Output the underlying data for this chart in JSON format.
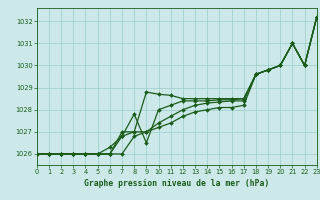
{
  "title": "Graphe pression niveau de la mer (hPa)",
  "bg_color": "#cce8e8",
  "grid_color": "#99cccc",
  "line_color": "#1a5c1a",
  "xlim": [
    0,
    23
  ],
  "ylim": [
    1025.5,
    1032.6
  ],
  "yticks": [
    1026,
    1027,
    1028,
    1029,
    1030,
    1031,
    1032
  ],
  "xticks": [
    0,
    1,
    2,
    3,
    4,
    5,
    6,
    7,
    8,
    9,
    10,
    11,
    12,
    13,
    14,
    15,
    16,
    17,
    18,
    19,
    20,
    21,
    22,
    23
  ],
  "series": [
    [
      1026.0,
      1026.0,
      1026.0,
      1026.0,
      1026.0,
      1026.0,
      1026.0,
      1027.0,
      1027.0,
      1028.8,
      1028.7,
      1028.65,
      1028.5,
      1028.5,
      1028.5,
      1028.5,
      1028.5,
      1028.5,
      1029.6,
      1029.8,
      1030.0,
      1031.0,
      1030.0,
      1032.2
    ],
    [
      1026.0,
      1026.0,
      1026.0,
      1026.0,
      1026.0,
      1026.0,
      1026.0,
      1026.8,
      1027.8,
      1026.5,
      1028.0,
      1028.2,
      1028.4,
      1028.4,
      1028.4,
      1028.45,
      1028.45,
      1028.5,
      1029.6,
      1029.8,
      1030.0,
      1031.0,
      1030.0,
      1032.2
    ],
    [
      1026.0,
      1026.0,
      1026.0,
      1026.0,
      1026.0,
      1026.0,
      1026.3,
      1026.8,
      1027.0,
      1027.0,
      1027.4,
      1027.7,
      1028.0,
      1028.2,
      1028.3,
      1028.35,
      1028.4,
      1028.4,
      1029.6,
      1029.8,
      1030.0,
      1031.0,
      1030.0,
      1032.2
    ],
    [
      1026.0,
      1026.0,
      1026.0,
      1026.0,
      1026.0,
      1026.0,
      1026.0,
      1026.0,
      1026.8,
      1027.0,
      1027.2,
      1027.4,
      1027.7,
      1027.9,
      1028.0,
      1028.1,
      1028.1,
      1028.2,
      1029.6,
      1029.8,
      1030.0,
      1031.0,
      1030.0,
      1032.2
    ]
  ]
}
